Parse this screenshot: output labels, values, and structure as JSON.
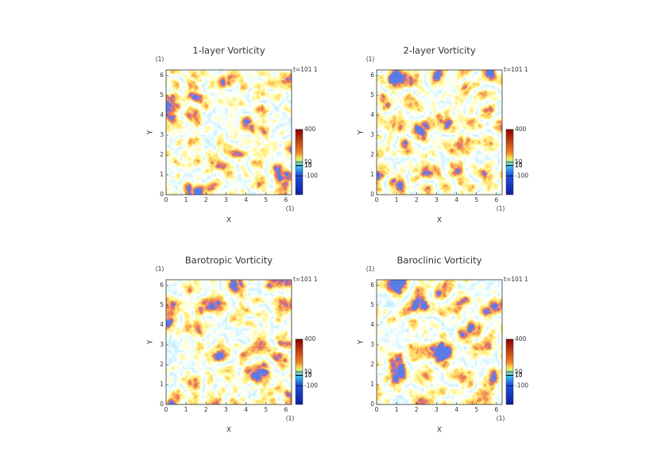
{
  "chart_data": [
    {
      "type": "heatmap",
      "title": "1-layer Vorticity",
      "time_label": "t=101 1",
      "xlabel": "X",
      "ylabel": "Y",
      "x_unit": "(1)",
      "y_unit": "(1)",
      "xlim": [
        0,
        6.2832
      ],
      "ylim": [
        0,
        6.2832
      ],
      "xticks": [
        0,
        1,
        2,
        3,
        4,
        5,
        6
      ],
      "yticks": [
        0,
        1,
        2,
        3,
        4,
        5,
        6
      ],
      "clim": [
        -300,
        400
      ],
      "cticks": [
        400,
        50,
        15,
        10,
        -100
      ]
    },
    {
      "type": "heatmap",
      "title": "2-layer Vorticity",
      "time_label": "t=101 1",
      "xlabel": "X",
      "ylabel": "Y",
      "x_unit": "(1)",
      "y_unit": "(1)",
      "xlim": [
        0,
        6.2832
      ],
      "ylim": [
        0,
        6.2832
      ],
      "xticks": [
        0,
        1,
        2,
        3,
        4,
        5,
        6
      ],
      "yticks": [
        0,
        1,
        2,
        3,
        4,
        5,
        6
      ],
      "clim": [
        -300,
        400
      ],
      "cticks": [
        400,
        50,
        15,
        10,
        -100
      ]
    },
    {
      "type": "heatmap",
      "title": "Barotropic Vorticity",
      "time_label": "t=101 1",
      "xlabel": "X",
      "ylabel": "Y",
      "x_unit": "(1)",
      "y_unit": "(1)",
      "xlim": [
        0,
        6.2832
      ],
      "ylim": [
        0,
        6.2832
      ],
      "xticks": [
        0,
        1,
        2,
        3,
        4,
        5,
        6
      ],
      "yticks": [
        0,
        1,
        2,
        3,
        4,
        5,
        6
      ],
      "clim": [
        -300,
        400
      ],
      "cticks": [
        400,
        50,
        15,
        10,
        -100
      ]
    },
    {
      "type": "heatmap",
      "title": "Baroclinic Vorticity",
      "time_label": "t=101 1",
      "xlabel": "X",
      "ylabel": "Y",
      "x_unit": "(1)",
      "y_unit": "(1)",
      "xlim": [
        0,
        6.2832
      ],
      "ylim": [
        0,
        6.2832
      ],
      "xticks": [
        0,
        1,
        2,
        3,
        4,
        5,
        6
      ],
      "yticks": [
        0,
        1,
        2,
        3,
        4,
        5,
        6
      ],
      "clim": [
        -300,
        400
      ],
      "cticks": [
        400,
        50,
        15,
        10,
        -100
      ]
    }
  ]
}
